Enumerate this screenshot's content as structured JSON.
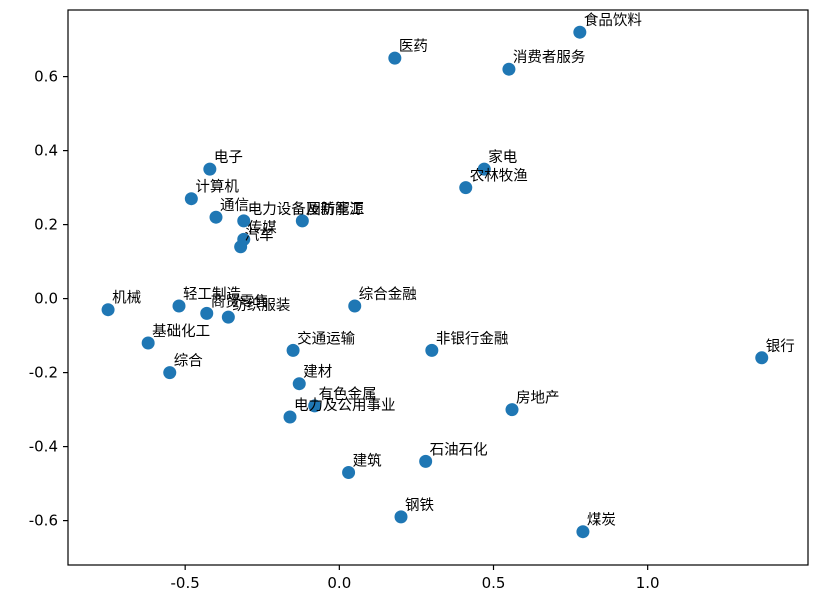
{
  "figure": {
    "background": "#ffffff"
  },
  "chart_data": {
    "type": "scatter",
    "title": "",
    "subtitle": "",
    "xlabel": "",
    "ylabel": "",
    "legend": "none",
    "grid": false,
    "xlim": [
      -0.88,
      1.52
    ],
    "ylim": [
      -0.72,
      0.78
    ],
    "xticks": [
      -0.5,
      0.0,
      0.5,
      1.0
    ],
    "yticks": [
      -0.6,
      -0.4,
      -0.2,
      0.0,
      0.2,
      0.4,
      0.6
    ],
    "marker_color": "#1f77b4",
    "marker_radius": 6.5,
    "axis_color": "#000000",
    "label_offset": {
      "dx": 4,
      "dy": -7
    },
    "points": [
      {
        "label": "食品饮料",
        "x": 0.78,
        "y": 0.72
      },
      {
        "label": "医药",
        "x": 0.18,
        "y": 0.65
      },
      {
        "label": "消费者服务",
        "x": 0.55,
        "y": 0.62
      },
      {
        "label": "电子",
        "x": -0.42,
        "y": 0.35
      },
      {
        "label": "家电",
        "x": 0.47,
        "y": 0.35
      },
      {
        "label": "农林牧渔",
        "x": 0.41,
        "y": 0.3
      },
      {
        "label": "计算机",
        "x": -0.48,
        "y": 0.27
      },
      {
        "label": "通信",
        "x": -0.4,
        "y": 0.22
      },
      {
        "label": "电力设备及新能源",
        "x": -0.31,
        "y": 0.21
      },
      {
        "label": "国防军工",
        "x": -0.12,
        "y": 0.21
      },
      {
        "label": "传媒",
        "x": -0.31,
        "y": 0.16
      },
      {
        "label": "汽车",
        "x": -0.32,
        "y": 0.14
      },
      {
        "label": "机械",
        "x": -0.75,
        "y": -0.03
      },
      {
        "label": "轻工制造",
        "x": -0.52,
        "y": -0.02
      },
      {
        "label": "商贸零售",
        "x": -0.43,
        "y": -0.04
      },
      {
        "label": "纺织服装",
        "x": -0.36,
        "y": -0.05
      },
      {
        "label": "综合金融",
        "x": 0.05,
        "y": -0.02
      },
      {
        "label": "基础化工",
        "x": -0.62,
        "y": -0.12
      },
      {
        "label": "综合",
        "x": -0.55,
        "y": -0.2
      },
      {
        "label": "交通运输",
        "x": -0.15,
        "y": -0.14
      },
      {
        "label": "非银行金融",
        "x": 0.3,
        "y": -0.14
      },
      {
        "label": "银行",
        "x": 1.37,
        "y": -0.16
      },
      {
        "label": "建材",
        "x": -0.13,
        "y": -0.23
      },
      {
        "label": "有色金属",
        "x": -0.08,
        "y": -0.29
      },
      {
        "label": "电力及公用事业",
        "x": -0.16,
        "y": -0.32
      },
      {
        "label": "房地产",
        "x": 0.56,
        "y": -0.3
      },
      {
        "label": "石油石化",
        "x": 0.28,
        "y": -0.44
      },
      {
        "label": "建筑",
        "x": 0.03,
        "y": -0.47
      },
      {
        "label": "钢铁",
        "x": 0.2,
        "y": -0.59
      },
      {
        "label": "煤炭",
        "x": 0.79,
        "y": -0.63
      }
    ]
  }
}
